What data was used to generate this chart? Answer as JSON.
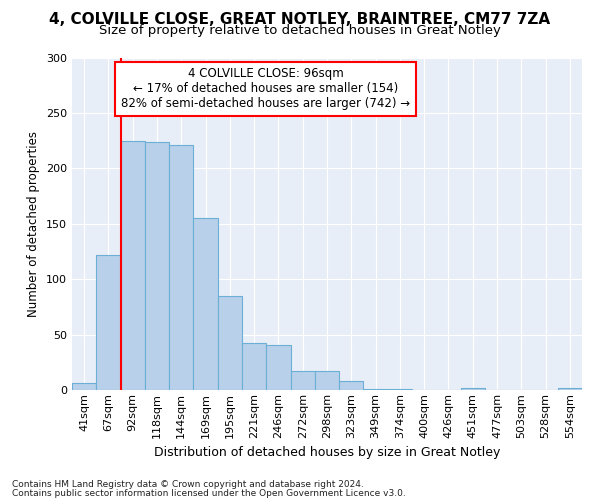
{
  "title1": "4, COLVILLE CLOSE, GREAT NOTLEY, BRAINTREE, CM77 7ZA",
  "title2": "Size of property relative to detached houses in Great Notley",
  "xlabel": "Distribution of detached houses by size in Great Notley",
  "ylabel": "Number of detached properties",
  "footnote1": "Contains HM Land Registry data © Crown copyright and database right 2024.",
  "footnote2": "Contains public sector information licensed under the Open Government Licence v3.0.",
  "bin_labels": [
    "41sqm",
    "67sqm",
    "92sqm",
    "118sqm",
    "144sqm",
    "169sqm",
    "195sqm",
    "221sqm",
    "246sqm",
    "272sqm",
    "298sqm",
    "323sqm",
    "349sqm",
    "374sqm",
    "400sqm",
    "426sqm",
    "451sqm",
    "477sqm",
    "503sqm",
    "528sqm",
    "554sqm"
  ],
  "bar_values": [
    6,
    122,
    225,
    224,
    221,
    155,
    85,
    42,
    41,
    17,
    17,
    8,
    1,
    1,
    0,
    0,
    2,
    0,
    0,
    0,
    2
  ],
  "bar_color": "#b8d0ea",
  "bar_edge_color": "#6baed6",
  "ylim": [
    0,
    300
  ],
  "yticks": [
    0,
    50,
    100,
    150,
    200,
    250,
    300
  ],
  "property_line_color": "red",
  "annotation_line1": "4 COLVILLE CLOSE: 96sqm",
  "annotation_line2": "← 17% of detached houses are smaller (154)",
  "annotation_line3": "82% of semi-detached houses are larger (742) →",
  "annotation_box_color": "white",
  "annotation_box_edge": "red",
  "background_color": "#e8eef7",
  "grid_color": "#ffffff",
  "title1_fontsize": 11,
  "title2_fontsize": 9.5,
  "xlabel_fontsize": 9,
  "ylabel_fontsize": 8.5,
  "tick_fontsize": 8,
  "footnote_fontsize": 6.5
}
